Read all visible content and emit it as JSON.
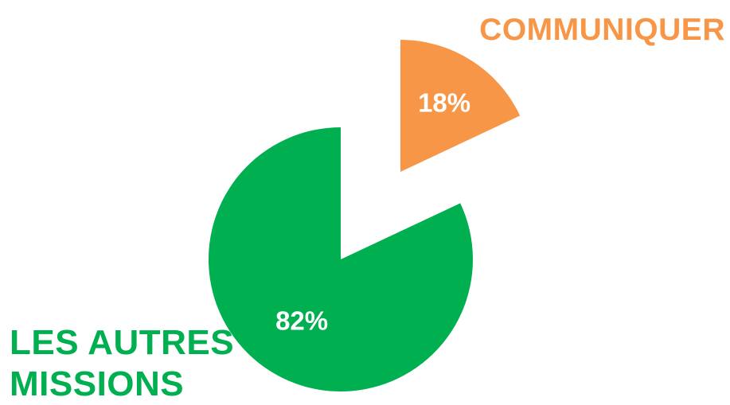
{
  "chart_data": {
    "type": "pie",
    "exploded": true,
    "start_angle_deg": 0,
    "direction": "clockwise",
    "slices": [
      {
        "name": "COMMUNIQUER",
        "value": 18,
        "label": "18%",
        "color": "#F79646"
      },
      {
        "name": "LES AUTRES MISSIONS",
        "label_lines": [
          "LES AUTRES",
          "MISSIONS"
        ],
        "value": 82,
        "label": "82%",
        "color": "#00B050"
      }
    ],
    "value_label_color": "#FFFFFF"
  }
}
